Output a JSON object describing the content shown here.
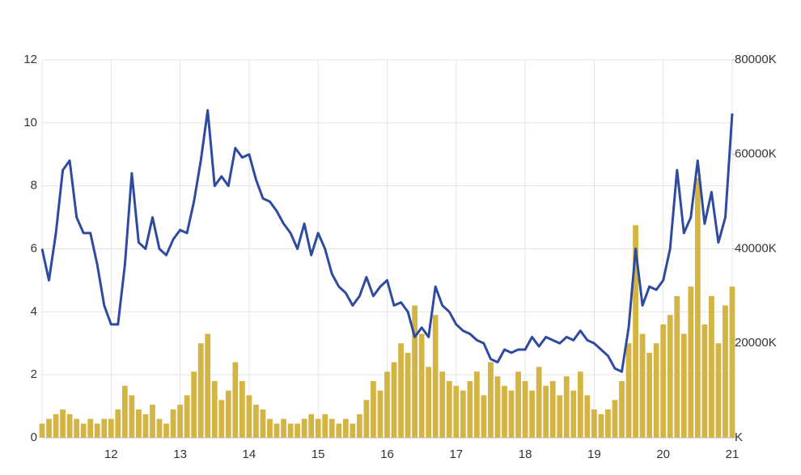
{
  "chart_data": {
    "type": "line-volume",
    "x": [
      11.0,
      11.1,
      11.2,
      11.3,
      11.4,
      11.5,
      11.6,
      11.7,
      11.8,
      11.9,
      12.0,
      12.1,
      12.2,
      12.3,
      12.4,
      12.5,
      12.6,
      12.7,
      12.8,
      12.9,
      13.0,
      13.1,
      13.2,
      13.3,
      13.4,
      13.5,
      13.6,
      13.7,
      13.8,
      13.9,
      14.0,
      14.1,
      14.2,
      14.3,
      14.4,
      14.5,
      14.6,
      14.7,
      14.8,
      14.9,
      15.0,
      15.1,
      15.2,
      15.3,
      15.4,
      15.5,
      15.6,
      15.7,
      15.8,
      15.9,
      16.0,
      16.1,
      16.2,
      16.3,
      16.4,
      16.5,
      16.6,
      16.7,
      16.8,
      16.9,
      17.0,
      17.1,
      17.2,
      17.3,
      17.4,
      17.5,
      17.6,
      17.7,
      17.8,
      17.9,
      18.0,
      18.1,
      18.2,
      18.3,
      18.4,
      18.5,
      18.6,
      18.7,
      18.8,
      18.9,
      19.0,
      19.1,
      19.2,
      19.3,
      19.4,
      19.5,
      19.6,
      19.7,
      19.8,
      19.9,
      20.0,
      20.1,
      20.2,
      20.3,
      20.4,
      20.5,
      20.6,
      20.7,
      20.8,
      20.9,
      21.0
    ],
    "series": [
      {
        "color": "#d4b442",
        "axis": "y2",
        "values": [
          3000,
          4000,
          5000,
          6000,
          5000,
          4000,
          3000,
          4000,
          3000,
          4000,
          4000,
          6000,
          11000,
          9000,
          6000,
          5000,
          7000,
          4000,
          3000,
          6000,
          7000,
          9000,
          14000,
          20000,
          22000,
          12000,
          8000,
          10000,
          16000,
          12000,
          9000,
          7000,
          6000,
          4000,
          3000,
          4000,
          3000,
          3000,
          4000,
          5000,
          4000,
          5000,
          4000,
          3000,
          4000,
          3000,
          5000,
          8000,
          12000,
          10000,
          14000,
          16000,
          20000,
          18000,
          28000,
          22000,
          15000,
          26000,
          14000,
          12000,
          11000,
          10000,
          12000,
          14000,
          9000,
          16000,
          13000,
          11000,
          10000,
          14000,
          12000,
          10000,
          15000,
          11000,
          12000,
          9000,
          13000,
          10000,
          14000,
          9000,
          6000,
          5000,
          6000,
          8000,
          12000,
          20000,
          45000,
          22000,
          18000,
          20000,
          24000,
          26000,
          30000,
          22000,
          32000,
          55000,
          24000,
          30000,
          20000,
          28000,
          32000
        ]
      },
      {
        "color": "#2e4ba0",
        "values": [
          6.0,
          5.0,
          6.5,
          8.5,
          8.8,
          7.0,
          6.5,
          6.5,
          5.5,
          4.2,
          3.6,
          3.6,
          5.5,
          8.4,
          6.2,
          6.0,
          7.0,
          6.0,
          5.8,
          6.3,
          6.6,
          6.5,
          7.5,
          8.8,
          10.4,
          8.0,
          8.3,
          8.0,
          9.2,
          8.9,
          9.0,
          8.2,
          7.6,
          7.5,
          7.2,
          6.8,
          6.5,
          6.0,
          6.8,
          5.8,
          6.5,
          6.0,
          5.2,
          4.8,
          4.6,
          4.2,
          4.5,
          5.1,
          4.5,
          4.8,
          5.0,
          4.2,
          4.3,
          4.0,
          3.2,
          3.5,
          3.2,
          4.8,
          4.2,
          4.0,
          3.6,
          3.4,
          3.3,
          3.1,
          3.0,
          2.5,
          2.4,
          2.8,
          2.7,
          2.8,
          2.8,
          3.2,
          2.9,
          3.2,
          3.1,
          3.0,
          3.2,
          3.1,
          3.4,
          3.1,
          3.0,
          2.8,
          2.6,
          2.2,
          2.1,
          3.5,
          6.0,
          4.2,
          4.8,
          4.7,
          5.0,
          6.0,
          8.5,
          6.5,
          7.0,
          8.8,
          6.8,
          7.8,
          6.2,
          7.0,
          10.3
        ]
      }
    ],
    "xlim": [
      11,
      21
    ],
    "xticks": [
      12,
      13,
      14,
      15,
      16,
      17,
      18,
      19,
      20,
      21
    ],
    "ylim": [
      0,
      12
    ],
    "yticks": [
      0,
      2,
      4,
      6,
      8,
      10,
      12
    ],
    "y2lim": [
      0,
      80000
    ],
    "y2ticks": [
      {
        "value": 0,
        "label": "K"
      },
      {
        "value": 20000,
        "label": "20000K"
      },
      {
        "value": 40000,
        "label": "40000K"
      },
      {
        "value": 60000,
        "label": "60000K"
      },
      {
        "value": 80000,
        "label": "80000K"
      }
    ],
    "grid": true
  }
}
